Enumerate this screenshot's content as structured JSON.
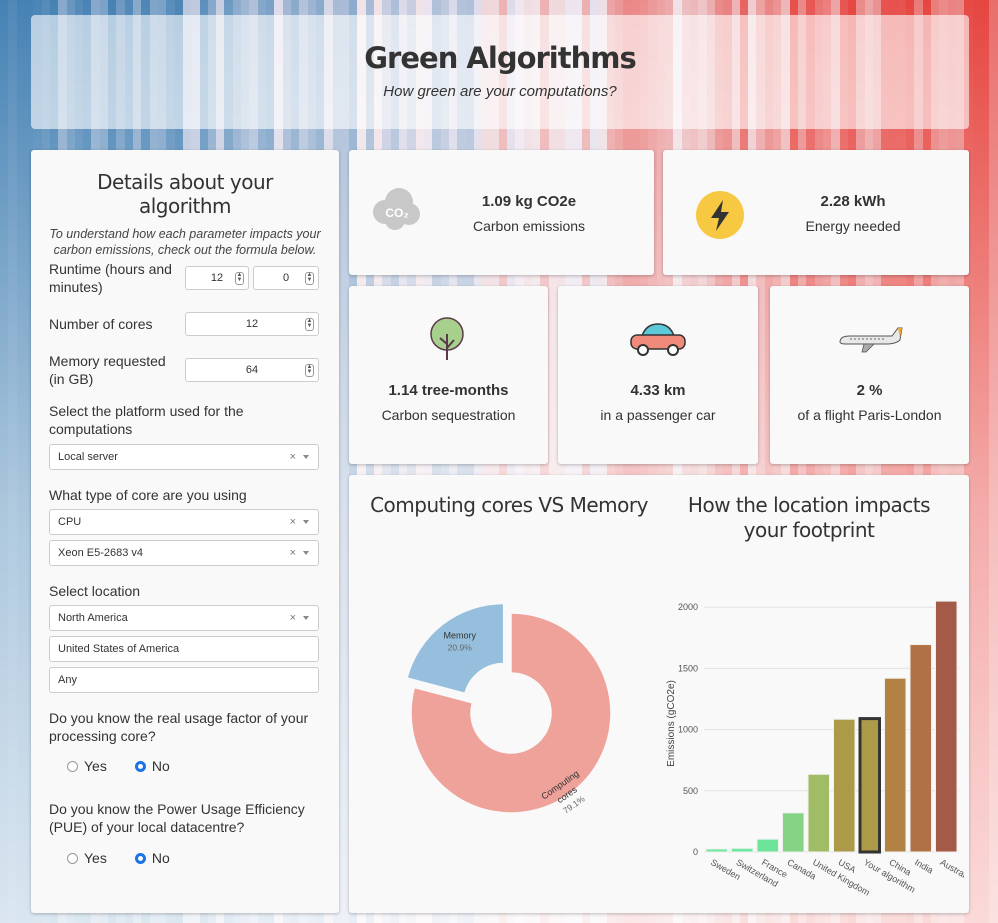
{
  "header": {
    "title": "Green Algorithms",
    "subtitle": "How green are your computations?"
  },
  "form": {
    "title": "Details about your algorithm",
    "note": "To understand how each parameter impacts your carbon emissions, check out the formula below.",
    "runtime": {
      "label": "Runtime (hours and minutes)",
      "hours": "12",
      "minutes": "0"
    },
    "cores": {
      "label": "Number of cores",
      "value": "12"
    },
    "memory": {
      "label": "Memory requested (in GB)",
      "value": "64"
    },
    "platform": {
      "label": "Select the platform used for the computations",
      "value": "Local server"
    },
    "core_type": {
      "label": "What type of core are you using",
      "type": "CPU",
      "model": "Xeon E5-2683 v4"
    },
    "location": {
      "label": "Select location",
      "continent": "North America",
      "country": "United States of America",
      "region": "Any"
    },
    "usage": {
      "label": "Do you know the real usage factor of your processing core?",
      "yes": "Yes",
      "no": "No",
      "selected": "No"
    },
    "pue": {
      "label": "Do you know the Power Usage Efficiency (PUE) of your local datacentre?",
      "yes": "Yes",
      "no": "No",
      "selected": "No"
    },
    "clear": "×"
  },
  "stats": {
    "carbon": {
      "value": "1.09 kg CO2e",
      "label": "Carbon emissions",
      "icon": "co2-cloud-icon"
    },
    "energy": {
      "value": "2.28 kWh",
      "label": "Energy needed",
      "icon": "lightning-icon"
    },
    "tree": {
      "value": "1.14 tree-months",
      "label": "Carbon sequestration",
      "icon": "tree-icon"
    },
    "car": {
      "value": "4.33 km",
      "label": "in a passenger car",
      "icon": "car-icon"
    },
    "flight": {
      "value": "2 %",
      "label": "of a flight Paris-London",
      "icon": "plane-icon"
    }
  },
  "co2_icon_text": "CO₂",
  "chart_data": [
    {
      "type": "pie",
      "title": "Computing cores VS Memory",
      "hole": true,
      "slices": [
        {
          "label": "Computing cores",
          "label_lines": [
            "Computing",
            "cores"
          ],
          "value": 79.1,
          "pct": "79.1%",
          "color": "#eea29a"
        },
        {
          "label": "Memory",
          "label_lines": [
            "Memory"
          ],
          "value": 20.9,
          "pct": "20.9%",
          "color": "#95bfdd",
          "pulled": true
        }
      ]
    },
    {
      "type": "bar",
      "title": "How the location impacts your footprint",
      "ylabel": "Emissions (gCO2e)",
      "ylim": [
        0,
        2100
      ],
      "yticks": [
        0,
        500,
        1000,
        1500,
        2000
      ],
      "grid": true,
      "categories": [
        "Sweden",
        "Switzerland",
        "France",
        "Canada",
        "United Kingdom",
        "USA",
        "Your algorithm",
        "China",
        "India",
        "Australia"
      ],
      "values": [
        25,
        30,
        105,
        320,
        635,
        1085,
        1090,
        1420,
        1695,
        2050
      ],
      "colors": [
        "#6ee7a0",
        "#6ee7a0",
        "#6ee49a",
        "#85d486",
        "#a0bc64",
        "#ad9a48",
        "#ad9a48",
        "#b28244",
        "#b07244",
        "#a35a46"
      ],
      "highlight": "Your algorithm"
    }
  ]
}
